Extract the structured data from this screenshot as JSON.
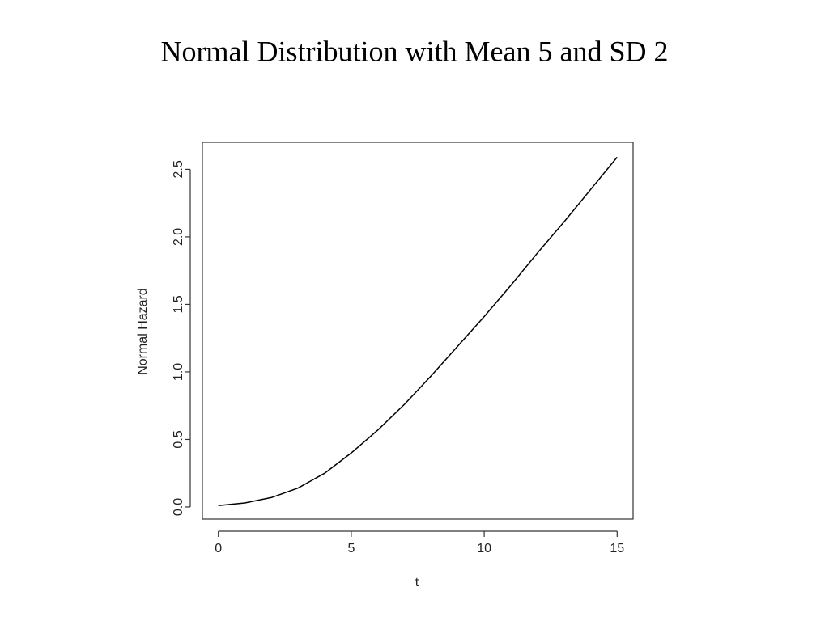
{
  "chart_data": {
    "type": "line",
    "title": "Normal Distribution with Mean 5 and SD 2",
    "x_label": "t",
    "y_label": "Normal Hazard",
    "x": [
      0,
      1,
      2,
      3,
      4,
      5,
      6,
      7,
      8,
      9,
      10,
      11,
      12,
      13,
      14,
      15
    ],
    "series": [
      {
        "color": "#000000",
        "values": [
          0.01,
          0.03,
          0.07,
          0.14,
          0.25,
          0.4,
          0.57,
          0.76,
          0.97,
          1.19,
          1.41,
          1.64,
          1.88,
          2.11,
          2.35,
          2.59
        ]
      }
    ],
    "xlim": [
      -0.6,
      15.6
    ],
    "ylim": [
      -0.09,
      2.7
    ],
    "xticks": [
      0,
      5,
      10,
      15
    ],
    "yticks": [
      {
        "value": 0,
        "label": "0.0"
      },
      {
        "value": 0.5,
        "label": "0.5"
      },
      {
        "value": 1,
        "label": "1.0"
      },
      {
        "value": 1.5,
        "label": "1.5"
      },
      {
        "value": 2,
        "label": "2.0"
      },
      {
        "value": 2.5,
        "label": "2.5"
      }
    ],
    "grid": false
  }
}
